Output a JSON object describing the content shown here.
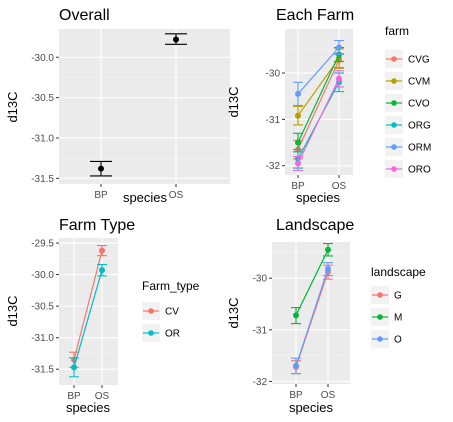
{
  "chart_data": [
    {
      "type": "line",
      "panel": "overall",
      "title": "Overall",
      "xlabel": "species",
      "ylabel": "d13C",
      "categories": [
        "BP",
        "OS"
      ],
      "ylim": [
        -31.57,
        -29.65
      ],
      "yticks": [
        -31.5,
        -31.0,
        -30.5,
        -30.0
      ],
      "ytick_labels": [
        "-31.5",
        "-31.0",
        "-30.5",
        "-30.0"
      ],
      "grid": true,
      "legend": null,
      "connect_points": false,
      "series": [
        {
          "color": "#000000",
          "values": [
            -31.38,
            -29.78
          ],
          "err": [
            [
              -31.47,
              -31.29
            ],
            [
              -29.84,
              -29.71
            ]
          ]
        }
      ]
    },
    {
      "type": "line",
      "panel": "each-farm",
      "title": "Each Farm",
      "xlabel": "species",
      "ylabel": "d13C",
      "categories": [
        "BP",
        "OS"
      ],
      "ylim": [
        -32.2,
        -29.05
      ],
      "yticks": [
        -32,
        -31,
        -30
      ],
      "ytick_labels": [
        "-32",
        "-31",
        "-30"
      ],
      "grid": true,
      "legend": {
        "title": "farm",
        "position": "right"
      },
      "series": [
        {
          "name": "CVG",
          "color": "#F8766D",
          "values": [
            -31.65,
            -29.72
          ],
          "err": [
            [
              -31.85,
              -31.45
            ],
            [
              -29.88,
              -29.58
            ]
          ]
        },
        {
          "name": "CVM",
          "color": "#B79F00",
          "values": [
            -30.92,
            -29.68
          ],
          "err": [
            [
              -31.12,
              -30.72
            ],
            [
              -29.9,
              -29.48
            ]
          ]
        },
        {
          "name": "CVO",
          "color": "#00BA38",
          "values": [
            -31.5,
            -29.6
          ],
          "err": [
            [
              -31.7,
              -31.3
            ],
            [
              -29.75,
              -29.45
            ]
          ]
        },
        {
          "name": "ORG",
          "color": "#00BFC4",
          "values": [
            -31.85,
            -30.2
          ],
          "err": [
            [
              -32.05,
              -31.65
            ],
            [
              -30.4,
              -30.0
            ]
          ]
        },
        {
          "name": "ORM",
          "color": "#619CFF",
          "values": [
            -30.45,
            -29.45
          ],
          "err": [
            [
              -30.7,
              -30.2
            ],
            [
              -29.6,
              -29.3
            ]
          ]
        },
        {
          "name": "ORO",
          "color": "#F564E3",
          "values": [
            -31.95,
            -30.12
          ],
          "err": [
            [
              -32.1,
              -31.8
            ],
            [
              -30.3,
              -29.95
            ]
          ]
        }
      ]
    },
    {
      "type": "line",
      "panel": "farm-type",
      "title": "Farm Type",
      "xlabel": "species",
      "ylabel": "d13C",
      "categories": [
        "BP",
        "OS"
      ],
      "ylim": [
        -31.75,
        -29.42
      ],
      "yticks": [
        -31.5,
        -31.0,
        -30.5,
        -30.0,
        -29.5
      ],
      "ytick_labels": [
        "-31.5",
        "-31.0",
        "-30.5",
        "-30.0",
        "-29.5"
      ],
      "grid": true,
      "legend": {
        "title": "Farm_type",
        "position": "right"
      },
      "series": [
        {
          "name": "CV",
          "color": "#F8766D",
          "values": [
            -31.35,
            -29.62
          ],
          "err": [
            [
              -31.47,
              -31.23
            ],
            [
              -29.7,
              -29.54
            ]
          ]
        },
        {
          "name": "OR",
          "color": "#00BFC4",
          "values": [
            -31.47,
            -29.93
          ],
          "err": [
            [
              -31.62,
              -31.32
            ],
            [
              -30.02,
              -29.84
            ]
          ]
        }
      ]
    },
    {
      "type": "line",
      "panel": "landscape",
      "title": "Landscape",
      "xlabel": "species",
      "ylabel": "d13C",
      "categories": [
        "BP",
        "OS"
      ],
      "ylim": [
        -32.05,
        -29.3
      ],
      "yticks": [
        -32,
        -31,
        -30
      ],
      "ytick_labels": [
        "-32",
        "-31",
        "-30"
      ],
      "grid": true,
      "legend": {
        "title": "landscape",
        "position": "right"
      },
      "series": [
        {
          "name": "G",
          "color": "#F8766D",
          "values": [
            -31.72,
            -29.88
          ],
          "err": [
            [
              -31.85,
              -31.6
            ],
            [
              -30.02,
              -29.75
            ]
          ]
        },
        {
          "name": "M",
          "color": "#00BA38",
          "values": [
            -30.72,
            -29.45
          ],
          "err": [
            [
              -30.88,
              -30.57
            ],
            [
              -29.57,
              -29.33
            ]
          ]
        },
        {
          "name": "O",
          "color": "#619CFF",
          "values": [
            -31.7,
            -29.82
          ],
          "err": [
            [
              -31.85,
              -31.55
            ],
            [
              -29.95,
              -29.7
            ]
          ]
        }
      ]
    }
  ]
}
